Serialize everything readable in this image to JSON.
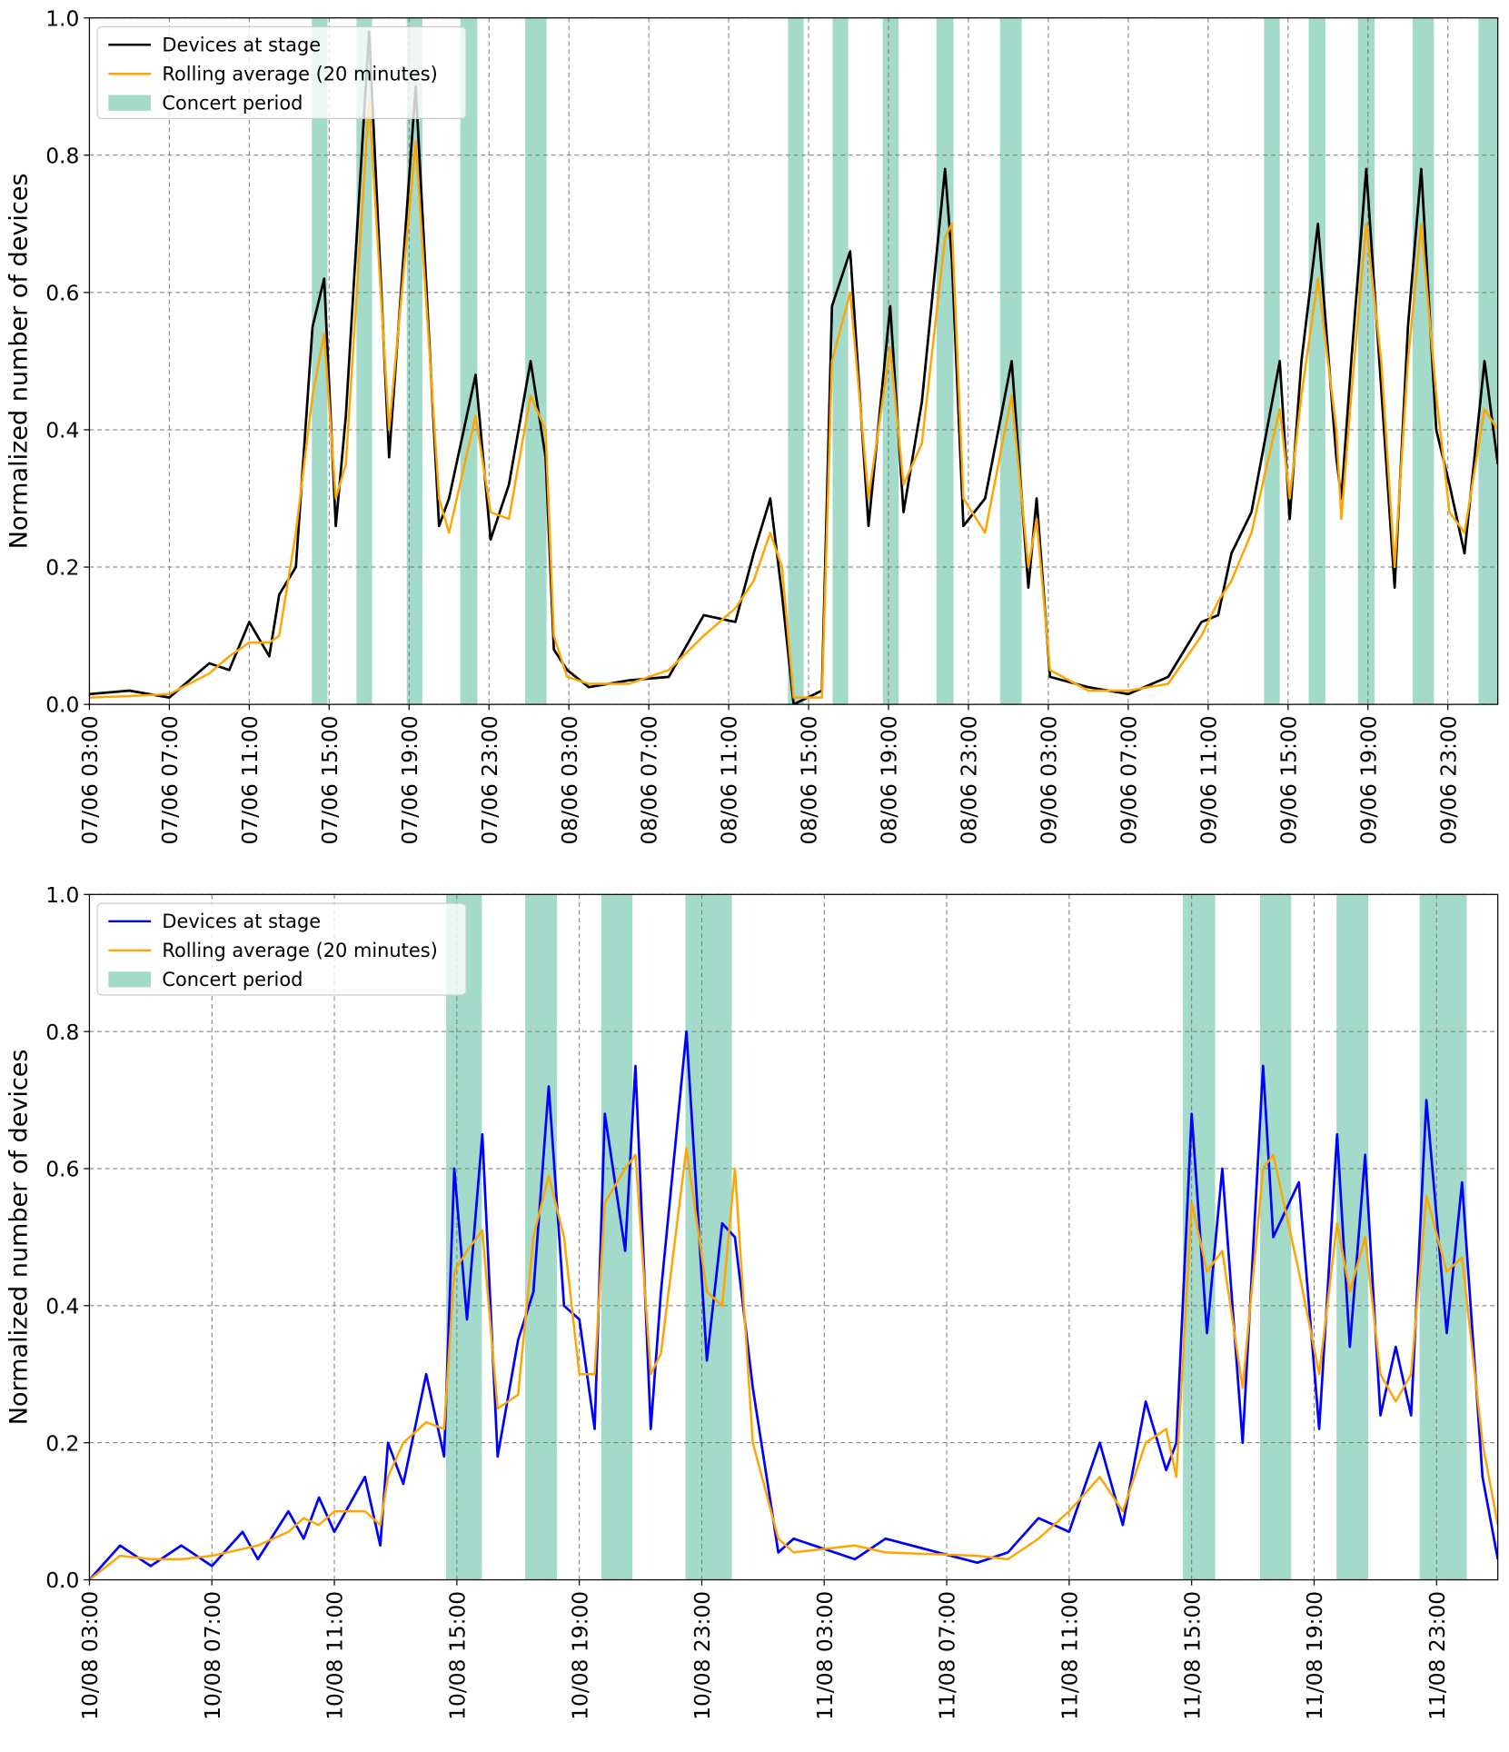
{
  "chart_data": [
    {
      "type": "line",
      "ylabel": "Normalized number of devices",
      "grid": true,
      "legend": "upper left",
      "xlim": [
        "07/06 03:00",
        "10/06 01:30"
      ],
      "ylim": [
        0,
        1
      ],
      "xticks": [
        "07/06 03:00",
        "07/06 07:00",
        "07/06 11:00",
        "07/06 15:00",
        "07/06 19:00",
        "07/06 23:00",
        "08/06 03:00",
        "08/06 07:00",
        "08/06 11:00",
        "08/06 15:00",
        "08/06 19:00",
        "08/06 23:00",
        "09/06 03:00",
        "09/06 07:00",
        "09/06 11:00",
        "09/06 15:00",
        "09/06 19:00",
        "09/06 23:00"
      ],
      "yticks": [
        {
          "value": 0,
          "label": "0.0"
        },
        0.2,
        0.4,
        0.6,
        0.8,
        {
          "value": 1,
          "label": "1.0"
        }
      ],
      "x": [
        "07/06 03:00",
        "07/06 05:00",
        "07/06 07:00",
        "07/06 08:00",
        "07/06 09:00",
        "07/06 10:00",
        "07/06 11:00",
        "07/06 12:00",
        "07/06 12:30",
        "07/06 13:20",
        "07/06 14:10",
        "07/06 14:45",
        "07/06 15:20",
        "07/06 15:50",
        "07/06 17:00",
        "07/06 18:00",
        "07/06 19:20",
        "07/06 20:30",
        "07/06 21:00",
        "07/06 22:20",
        "07/06 23:05",
        "08/06 00:00",
        "08/06 01:05",
        "08/06 01:50",
        "08/06 02:15",
        "08/06 02:55",
        "08/06 04:00",
        "08/06 06:00",
        "08/06 08:00",
        "08/06 09:45",
        "08/06 11:20",
        "08/06 12:15",
        "08/06 13:05",
        "08/06 13:40",
        "08/06 14:15",
        "08/06 15:40",
        "08/06 16:10",
        "08/06 17:05",
        "08/06 18:00",
        "08/06 19:05",
        "08/06 19:45",
        "08/06 20:40",
        "08/06 21:50",
        "08/06 22:10",
        "08/06 22:45",
        "08/06 23:50",
        "09/06 01:10",
        "09/06 02:00",
        "09/06 02:25",
        "09/06 03:05",
        "09/06 05:00",
        "09/06 07:00",
        "09/06 09:00",
        "09/06 10:40",
        "09/06 11:30",
        "09/06 12:10",
        "09/06 13:10",
        "09/06 14:35",
        "09/06 15:05",
        "09/06 15:40",
        "09/06 16:30",
        "09/06 17:25",
        "09/06 17:40",
        "09/06 18:10",
        "09/06 18:55",
        "09/06 19:40",
        "09/06 20:20",
        "09/06 21:00",
        "09/06 21:40",
        "09/06 22:25",
        "09/06 23:05",
        "09/06 23:50",
        "10/06 00:50",
        "10/06 01:30"
      ],
      "series": [
        {
          "name": "Devices at stage",
          "color": "#000000",
          "values": [
            0.015,
            0.02,
            0.01,
            0.035,
            0.06,
            0.05,
            0.12,
            0.07,
            0.16,
            0.2,
            0.55,
            0.62,
            0.26,
            0.42,
            0.98,
            0.36,
            0.9,
            0.26,
            0.3,
            0.48,
            0.24,
            0.32,
            0.5,
            0.36,
            0.08,
            0.05,
            0.025,
            0.035,
            0.04,
            0.13,
            0.12,
            0.22,
            0.3,
            0.16,
            0,
            0.02,
            0.58,
            0.66,
            0.26,
            0.58,
            0.28,
            0.44,
            0.78,
            0.65,
            0.26,
            0.3,
            0.5,
            0.17,
            0.3,
            0.04,
            0.025,
            0.015,
            0.04,
            0.12,
            0.13,
            0.22,
            0.28,
            0.5,
            0.27,
            0.5,
            0.7,
            0.36,
            0.3,
            0.5,
            0.78,
            0.46,
            0.17,
            0.55,
            0.78,
            0.4,
            0.32,
            0.22,
            0.5,
            0.35
          ]
        },
        {
          "name": "Rolling average (20 minutes)",
          "color": "#ffa500",
          "values": [
            0.01,
            0.012,
            0.015,
            0.03,
            0.045,
            0.07,
            0.09,
            0.09,
            0.1,
            0.25,
            0.45,
            0.54,
            0.3,
            0.35,
            0.88,
            0.4,
            0.82,
            0.3,
            0.25,
            0.42,
            0.28,
            0.27,
            0.45,
            0.4,
            0.1,
            0.04,
            0.03,
            0.03,
            0.05,
            0.1,
            0.14,
            0.18,
            0.25,
            0.2,
            0.01,
            0.01,
            0.5,
            0.6,
            0.3,
            0.52,
            0.32,
            0.38,
            0.68,
            0.7,
            0.3,
            0.25,
            0.45,
            0.2,
            0.27,
            0.05,
            0.02,
            0.02,
            0.03,
            0.1,
            0.15,
            0.18,
            0.25,
            0.43,
            0.3,
            0.45,
            0.62,
            0.4,
            0.27,
            0.45,
            0.7,
            0.5,
            0.2,
            0.5,
            0.7,
            0.45,
            0.28,
            0.25,
            0.43,
            0.4
          ]
        }
      ],
      "concerts": {
        "name": "Concert period",
        "color": "#66c2a5",
        "periods": [
          [
            "07/06 14:08",
            "07/06 14:55"
          ],
          [
            "07/06 16:22",
            "07/06 17:09"
          ],
          [
            "07/06 18:53",
            "07/06 19:40"
          ],
          [
            "07/06 21:34",
            "07/06 22:25"
          ],
          [
            "08/06 00:49",
            "08/06 01:53"
          ],
          [
            "08/06 13:58",
            "08/06 14:45"
          ],
          [
            "08/06 16:12",
            "08/06 16:59"
          ],
          [
            "08/06 18:43",
            "08/06 19:30"
          ],
          [
            "08/06 21:24",
            "08/06 22:15"
          ],
          [
            "09/06 00:35",
            "09/06 01:40"
          ],
          [
            "09/06 13:48",
            "09/06 14:35"
          ],
          [
            "09/06 16:02",
            "09/06 16:52"
          ],
          [
            "09/06 18:30",
            "09/06 19:20"
          ],
          [
            "09/06 21:14",
            "09/06 22:18"
          ],
          [
            "10/06 00:32",
            "10/06 01:30"
          ]
        ]
      }
    },
    {
      "type": "line",
      "ylabel": "Normalized number of devices",
      "grid": true,
      "legend": "upper left",
      "xlim": [
        "10/08 03:00",
        "12/08 01:00"
      ],
      "ylim": [
        0,
        1
      ],
      "xticks": [
        "10/08 03:00",
        "10/08 07:00",
        "10/08 11:00",
        "10/08 15:00",
        "10/08 19:00",
        "10/08 23:00",
        "11/08 03:00",
        "11/08 07:00",
        "11/08 11:00",
        "11/08 15:00",
        "11/08 19:00",
        "11/08 23:00"
      ],
      "yticks": [
        {
          "value": 0,
          "label": "0.0"
        },
        0.2,
        0.4,
        0.6,
        0.8,
        {
          "value": 1,
          "label": "1.0"
        }
      ],
      "x": [
        "10/08 03:00",
        "10/08 04:00",
        "10/08 05:00",
        "10/08 06:00",
        "10/08 07:00",
        "10/08 08:00",
        "10/08 08:30",
        "10/08 09:30",
        "10/08 10:00",
        "10/08 10:30",
        "10/08 11:00",
        "10/08 12:00",
        "10/08 12:30",
        "10/08 12:45",
        "10/08 13:15",
        "10/08 14:00",
        "10/08 14:35",
        "10/08 14:55",
        "10/08 15:20",
        "10/08 15:50",
        "10/08 16:20",
        "10/08 17:00",
        "10/08 17:30",
        "10/08 18:00",
        "10/08 18:30",
        "10/08 19:00",
        "10/08 19:30",
        "10/08 19:50",
        "10/08 20:30",
        "10/08 20:50",
        "10/08 21:20",
        "10/08 21:40",
        "10/08 22:30",
        "10/08 23:10",
        "10/08 23:40",
        "11/08 00:05",
        "11/08 00:40",
        "11/08 01:30",
        "11/08 02:00",
        "11/08 04:00",
        "11/08 05:00",
        "11/08 08:00",
        "11/08 09:00",
        "11/08 10:00",
        "11/08 11:00",
        "11/08 12:00",
        "11/08 12:45",
        "11/08 13:30",
        "11/08 14:10",
        "11/08 14:30",
        "11/08 15:00",
        "11/08 15:30",
        "11/08 16:00",
        "11/08 16:40",
        "11/08 17:20",
        "11/08 17:40",
        "11/08 18:30",
        "11/08 19:10",
        "11/08 19:45",
        "11/08 20:10",
        "11/08 20:40",
        "11/08 21:10",
        "11/08 21:40",
        "11/08 22:10",
        "11/08 22:40",
        "11/08 23:20",
        "11/08 23:50",
        "12/08 00:30",
        "12/08 01:00"
      ],
      "series": [
        {
          "name": "Devices at stage",
          "color": "#0000ff",
          "values": [
            0,
            0.05,
            0.02,
            0.05,
            0.02,
            0.07,
            0.03,
            0.1,
            0.06,
            0.12,
            0.07,
            0.15,
            0.05,
            0.2,
            0.14,
            0.3,
            0.18,
            0.6,
            0.38,
            0.65,
            0.18,
            0.35,
            0.42,
            0.72,
            0.4,
            0.38,
            0.22,
            0.68,
            0.48,
            0.75,
            0.22,
            0.42,
            0.8,
            0.32,
            0.52,
            0.5,
            0.28,
            0.04,
            0.06,
            0.03,
            0.06,
            0.025,
            0.04,
            0.09,
            0.07,
            0.2,
            0.08,
            0.26,
            0.16,
            0.2,
            0.68,
            0.36,
            0.6,
            0.2,
            0.75,
            0.5,
            0.58,
            0.22,
            0.65,
            0.34,
            0.62,
            0.24,
            0.34,
            0.24,
            0.7,
            0.36,
            0.58,
            0.15,
            0.03
          ]
        },
        {
          "name": "Rolling average (20 minutes)",
          "color": "#ffa500",
          "values": [
            0,
            0.035,
            0.03,
            0.03,
            0.035,
            0.045,
            0.05,
            0.07,
            0.09,
            0.08,
            0.1,
            0.1,
            0.08,
            0.15,
            0.2,
            0.23,
            0.22,
            0.45,
            0.48,
            0.51,
            0.25,
            0.27,
            0.5,
            0.59,
            0.5,
            0.3,
            0.3,
            0.55,
            0.6,
            0.62,
            0.3,
            0.33,
            0.63,
            0.42,
            0.4,
            0.6,
            0.2,
            0.06,
            0.04,
            0.05,
            0.04,
            0.035,
            0.03,
            0.06,
            0.1,
            0.15,
            0.1,
            0.2,
            0.22,
            0.15,
            0.55,
            0.45,
            0.48,
            0.28,
            0.6,
            0.62,
            0.45,
            0.3,
            0.52,
            0.42,
            0.5,
            0.3,
            0.26,
            0.3,
            0.56,
            0.45,
            0.47,
            0.2,
            0.08
          ]
        }
      ],
      "concerts": {
        "name": "Concert period",
        "color": "#66c2a5",
        "periods": [
          [
            "10/08 14:39",
            "10/08 15:49"
          ],
          [
            "10/08 17:14",
            "10/08 18:16"
          ],
          [
            "10/08 19:43",
            "10/08 20:44"
          ],
          [
            "10/08 22:28",
            "10/08 23:59"
          ],
          [
            "11/08 14:43",
            "11/08 15:46"
          ],
          [
            "11/08 17:14",
            "11/08 18:15"
          ],
          [
            "11/08 19:44",
            "11/08 20:46"
          ],
          [
            "11/08 22:27",
            "11/08 23:59"
          ]
        ]
      }
    }
  ]
}
